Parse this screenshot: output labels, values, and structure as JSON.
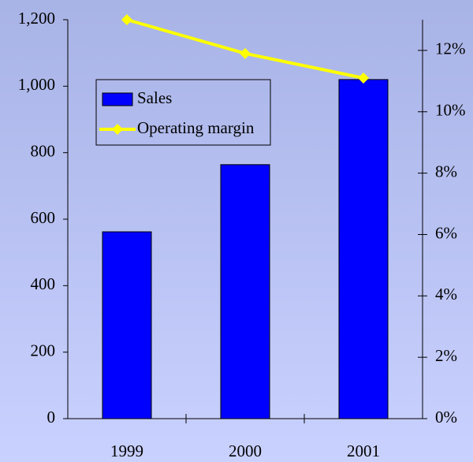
{
  "chart_data": {
    "type": "bar",
    "categories": [
      "1999",
      "2000",
      "2001"
    ],
    "series": [
      {
        "name": "Sales",
        "color": "#0000ff",
        "type": "bar",
        "values": [
          562,
          764,
          1020
        ]
      },
      {
        "name": "Operating margin",
        "color": "#ffff00",
        "type": "line",
        "axis": "y2",
        "values": [
          13,
          11.9,
          11.1
        ]
      }
    ],
    "ylim": [
      0,
      1200
    ],
    "yticks": [
      0,
      200,
      400,
      600,
      800,
      {
        "value": 1000,
        "label": "1,000"
      },
      {
        "value": 1200,
        "label": "1,200"
      }
    ],
    "y2lim": [
      0,
      13
    ],
    "y2ticks": [
      {
        "value": 0,
        "label": "0%"
      },
      {
        "value": 2,
        "label": "2%"
      },
      {
        "value": 4,
        "label": "4%"
      },
      {
        "value": 6,
        "label": "6%"
      },
      {
        "value": 8,
        "label": "8%"
      },
      {
        "value": 10,
        "label": "10%"
      },
      {
        "value": 12,
        "label": "12%"
      }
    ],
    "legend": "upper left"
  }
}
